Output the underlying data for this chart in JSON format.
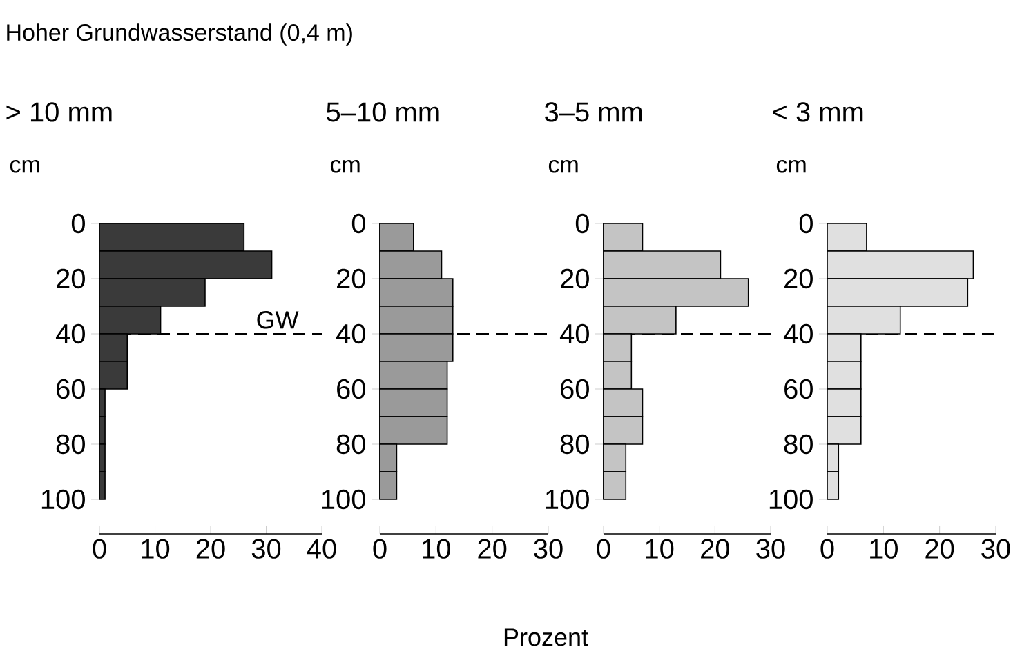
{
  "chart_data": [
    {
      "type": "histogram",
      "orientation": "horizontal",
      "title": "> 10 mm",
      "ylabel": "cm",
      "annotations": [
        "Hoher Grundwasserstand (0,4 m)"
      ],
      "bins": [
        0,
        10,
        20,
        30,
        40,
        50,
        60,
        70,
        80,
        90,
        100
      ],
      "values": [
        26,
        31,
        19,
        11,
        5,
        5,
        1,
        1,
        1,
        1
      ],
      "color": "#3a3a3a",
      "xlim": [
        0,
        40
      ],
      "xticks": [
        0,
        10,
        20,
        30,
        40
      ],
      "ylim": [
        100,
        0
      ],
      "yticks": [
        0,
        20,
        40,
        60,
        80,
        100
      ],
      "ref_lines": [
        {
          "axis": "y",
          "value": 40,
          "label": "GW",
          "line_style": "dashed"
        }
      ]
    },
    {
      "type": "histogram",
      "orientation": "horizontal",
      "title": "5–10 mm",
      "ylabel": "cm",
      "bins": [
        0,
        10,
        20,
        30,
        40,
        50,
        60,
        70,
        80,
        90,
        100
      ],
      "values": [
        6,
        11,
        13,
        13,
        13,
        12,
        12,
        12,
        3,
        3
      ],
      "color": "#9a9a9a",
      "xlim": [
        0,
        30
      ],
      "xticks": [
        0,
        10,
        20,
        30
      ],
      "ylim": [
        100,
        0
      ],
      "yticks": [
        0,
        20,
        40,
        60,
        80,
        100
      ],
      "ref_lines": [
        {
          "axis": "y",
          "value": 40,
          "line_style": "dashed"
        }
      ]
    },
    {
      "type": "histogram",
      "orientation": "horizontal",
      "title": "3–5 mm",
      "ylabel": "cm",
      "xlabel": "Prozent",
      "bins": [
        0,
        10,
        20,
        30,
        40,
        50,
        60,
        70,
        80,
        90,
        100
      ],
      "values": [
        7,
        21,
        26,
        13,
        5,
        5,
        7,
        7,
        4,
        4
      ],
      "color": "#c4c4c4",
      "xlim": [
        0,
        30
      ],
      "xticks": [
        0,
        10,
        20,
        30
      ],
      "ylim": [
        100,
        0
      ],
      "yticks": [
        0,
        20,
        40,
        60,
        80,
        100
      ],
      "ref_lines": [
        {
          "axis": "y",
          "value": 40,
          "line_style": "dashed"
        }
      ]
    },
    {
      "type": "histogram",
      "orientation": "horizontal",
      "title": "< 3 mm",
      "ylabel": "cm",
      "bins": [
        0,
        10,
        20,
        30,
        40,
        50,
        60,
        70,
        80,
        90,
        100
      ],
      "values": [
        7,
        26,
        25,
        13,
        6,
        6,
        6,
        6,
        2,
        2
      ],
      "color": "#e0e0e0",
      "xlim": [
        0,
        30
      ],
      "xticks": [
        0,
        10,
        20,
        30
      ],
      "ylim": [
        100,
        0
      ],
      "yticks": [
        0,
        20,
        40,
        60,
        80,
        100
      ],
      "ref_lines": [
        {
          "axis": "y",
          "value": 40,
          "line_style": "dashed"
        }
      ]
    }
  ]
}
